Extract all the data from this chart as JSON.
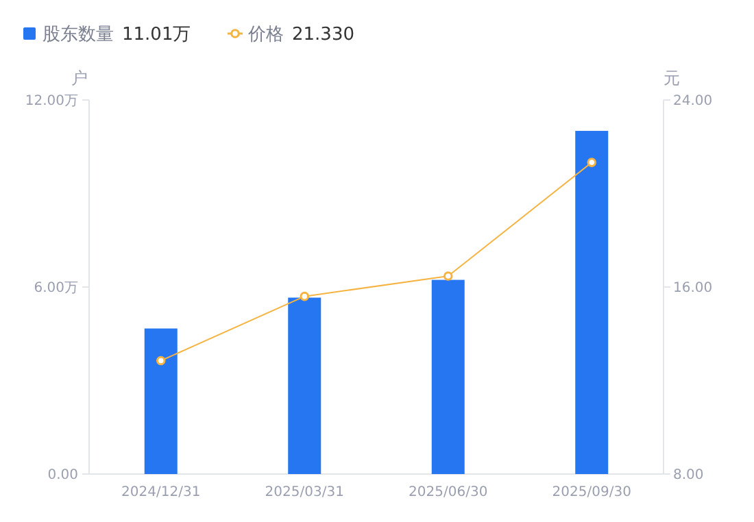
{
  "chart_data": {
    "type": "bar",
    "categories": [
      "2024/12/31",
      "2025/03/31",
      "2025/06/30",
      "2025/09/30"
    ],
    "series": [
      {
        "name": "股东数量",
        "color": "#2676f2",
        "values": [
          4.67,
          5.66,
          6.23,
          11.01
        ]
      },
      {
        "name": "价格",
        "type": "line",
        "axis": "y2",
        "color": "#f5b342",
        "marker": "circle",
        "values": [
          12.85,
          15.6,
          16.47,
          21.33
        ]
      }
    ],
    "annotations": [
      "11.01万",
      "21.330"
    ],
    "ylabel": "户",
    "y2label": "元",
    "ylim": [
      0,
      12
    ],
    "yticks": [
      {
        "value": 0,
        "label": "0.00"
      },
      {
        "value": 6,
        "label": "6.00万"
      },
      {
        "value": 12,
        "label": "12.00万"
      }
    ],
    "y2lim": [
      8,
      24
    ],
    "y2ticks": [
      {
        "value": 8,
        "label": "8.00"
      },
      {
        "value": 16,
        "label": "16.00"
      },
      {
        "value": 24,
        "label": "24.00"
      }
    ],
    "legend": "top left",
    "grid": false
  }
}
